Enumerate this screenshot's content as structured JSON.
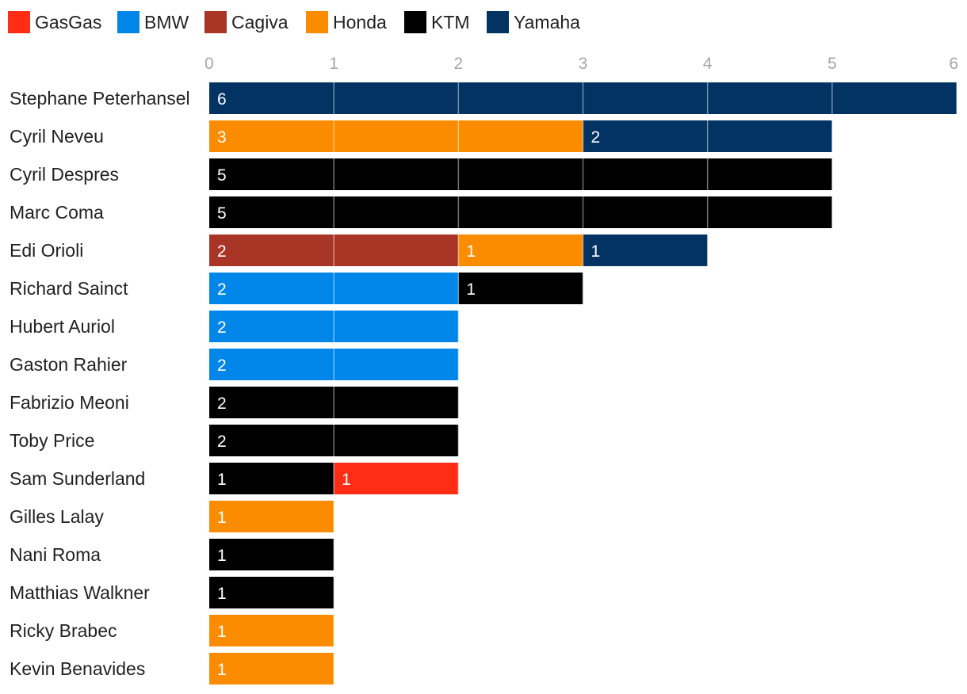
{
  "chart_data": {
    "type": "bar",
    "orientation": "horizontal",
    "stacked": true,
    "legend_position": "top-left",
    "xlim": [
      0,
      6
    ],
    "x_ticks": [
      "0",
      "1",
      "2",
      "3",
      "4",
      "5",
      "6"
    ],
    "grid": true,
    "categories": [
      "Stephane Peterhansel",
      "Cyril Neveu",
      "Cyril Despres",
      "Marc Coma",
      "Edi Orioli",
      "Richard Sainct",
      "Hubert Auriol",
      "Gaston Rahier",
      "Fabrizio Meoni",
      "Toby Price",
      "Sam Sunderland",
      "Gilles Lalay",
      "Nani Roma",
      "Matthias Walkner",
      "Ricky Brabec",
      "Kevin Benavides"
    ],
    "series": [
      {
        "name": "GasGas",
        "color": "#ff2c16",
        "values": [
          0,
          0,
          0,
          0,
          0,
          0,
          0,
          0,
          0,
          0,
          1,
          0,
          0,
          0,
          0,
          0
        ]
      },
      {
        "name": "BMW",
        "color": "#0085e8",
        "values": [
          0,
          0,
          0,
          0,
          0,
          2,
          2,
          2,
          0,
          0,
          0,
          0,
          0,
          0,
          0,
          0
        ]
      },
      {
        "name": "Cagiva",
        "color": "#a93527",
        "values": [
          0,
          0,
          0,
          0,
          2,
          0,
          0,
          0,
          0,
          0,
          0,
          0,
          0,
          0,
          0,
          0
        ]
      },
      {
        "name": "Honda",
        "color": "#fb8c00",
        "values": [
          0,
          3,
          0,
          0,
          1,
          0,
          0,
          0,
          0,
          0,
          0,
          1,
          0,
          0,
          1,
          1
        ]
      },
      {
        "name": "KTM",
        "color": "#000000",
        "values": [
          0,
          0,
          5,
          5,
          0,
          1,
          0,
          0,
          2,
          2,
          1,
          0,
          1,
          1,
          0,
          0
        ]
      },
      {
        "name": "Yamaha",
        "color": "#023363",
        "values": [
          6,
          2,
          0,
          0,
          1,
          0,
          0,
          0,
          0,
          0,
          0,
          0,
          0,
          0,
          0,
          0
        ]
      }
    ],
    "stack_order": [
      [
        "Yamaha"
      ],
      [
        "Honda",
        "Yamaha"
      ],
      [
        "KTM"
      ],
      [
        "KTM"
      ],
      [
        "Cagiva",
        "Honda",
        "Yamaha"
      ],
      [
        "BMW",
        "KTM"
      ],
      [
        "BMW"
      ],
      [
        "BMW"
      ],
      [
        "KTM"
      ],
      [
        "KTM"
      ],
      [
        "KTM",
        "GasGas"
      ],
      [
        "Honda"
      ],
      [
        "KTM"
      ],
      [
        "KTM"
      ],
      [
        "Honda"
      ],
      [
        "Honda"
      ]
    ]
  }
}
